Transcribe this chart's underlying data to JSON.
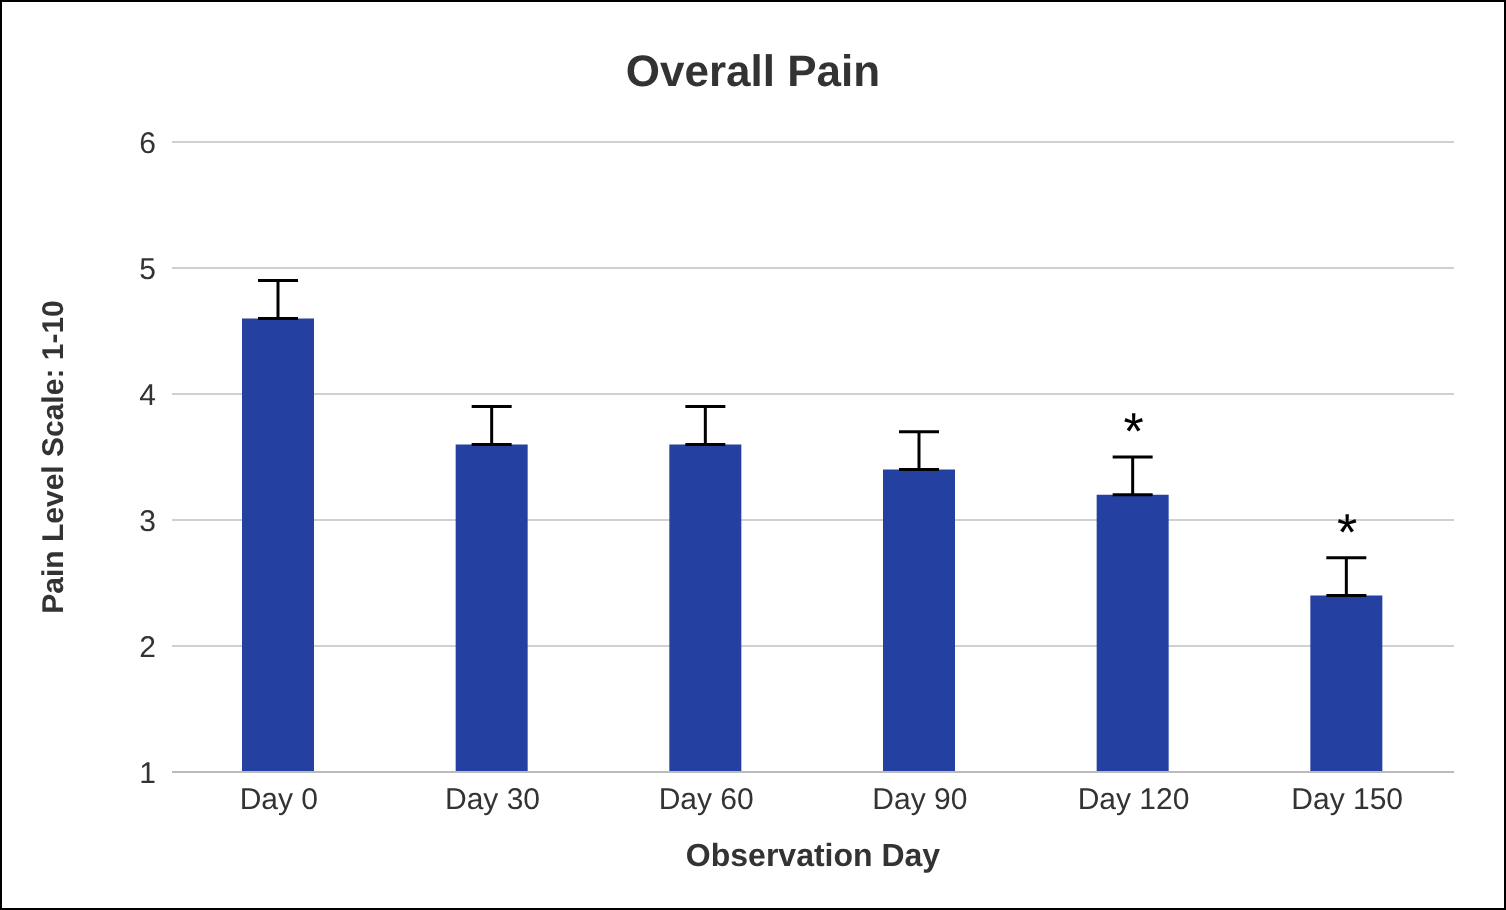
{
  "chart_data": {
    "type": "bar",
    "title": "Overall Pain",
    "xlabel": "Observation Day",
    "ylabel": "Pain Level Scale: 1-10",
    "categories": [
      "Day 0",
      "Day 30",
      "Day 60",
      "Day 90",
      "Day 120",
      "Day 150"
    ],
    "values": [
      4.6,
      3.6,
      3.6,
      3.4,
      3.2,
      2.4
    ],
    "errors": [
      [
        4.6,
        4.9
      ],
      [
        3.6,
        3.9
      ],
      [
        3.6,
        3.9
      ],
      [
        3.4,
        3.7
      ],
      [
        3.2,
        3.5
      ],
      [
        2.4,
        2.7
      ]
    ],
    "color": "#2440a0",
    "ylim": [
      1,
      6
    ],
    "yticks": [
      1,
      2,
      3,
      4,
      5,
      6
    ],
    "grid": "y",
    "annotations": [
      {
        "text": "*",
        "x": "Day 120",
        "y": 3.2
      },
      {
        "text": "*",
        "x": "Day 150",
        "y": 2.4
      }
    ]
  }
}
